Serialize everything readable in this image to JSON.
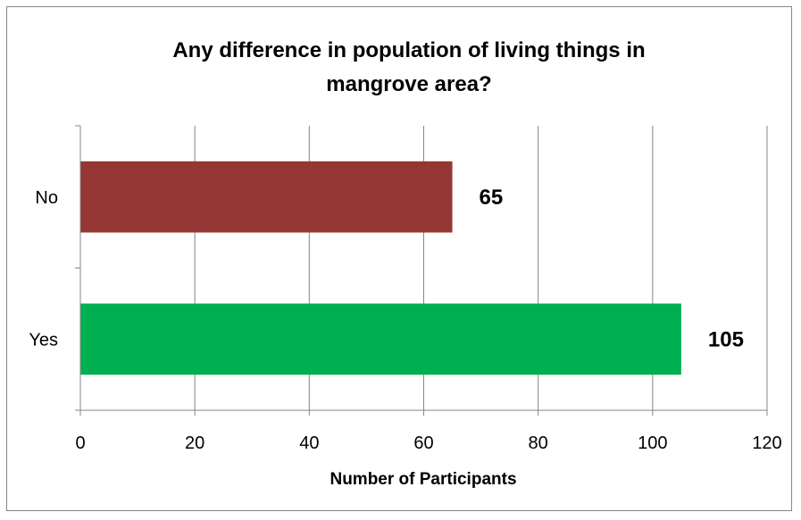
{
  "chart_data": {
    "type": "bar",
    "orientation": "horizontal",
    "title": "Any difference in population of living things in mangrove area?",
    "title_lines": [
      "Any difference in population of living things in",
      "mangrove area?"
    ],
    "categories": [
      "No",
      "Yes"
    ],
    "values": [
      65,
      105
    ],
    "colors": [
      "#943634",
      "#00b050"
    ],
    "data_labels": [
      "65",
      "105"
    ],
    "xlabel": "Number of Participants",
    "ylabel": "",
    "xlim": [
      0,
      120
    ],
    "xticks": [
      0,
      20,
      40,
      60,
      80,
      100,
      120
    ],
    "grid": true,
    "legend": "none"
  }
}
